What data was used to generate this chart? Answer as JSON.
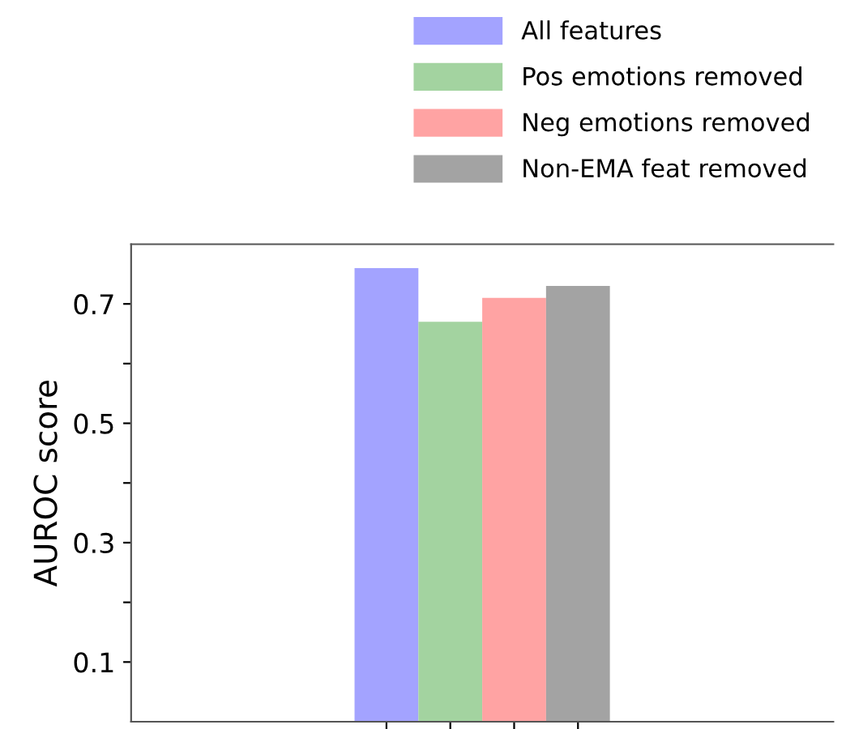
{
  "chart_data": {
    "type": "bar",
    "ylabel": "AUROC score",
    "categories": [
      null
    ],
    "series": [
      {
        "name": "All features",
        "color": "#a3a3ff",
        "values": [
          0.76
        ]
      },
      {
        "name": "Pos emotions removed",
        "color": "#a3d3a0",
        "values": [
          0.67
        ]
      },
      {
        "name": "Neg emotions removed",
        "color": "#ffa3a3",
        "values": [
          0.71
        ]
      },
      {
        "name": "Non-EMA feat removed",
        "color": "#a3a3a3",
        "values": [
          0.73
        ]
      }
    ],
    "ylim": [
      0,
      0.8
    ],
    "yticks": [
      0.1,
      {
        "value": 0.2,
        "label": null
      },
      0.3,
      {
        "value": 0.4,
        "label": null
      },
      0.5,
      {
        "value": 0.6,
        "label": null
      },
      0.7
    ],
    "tick_labels": "y",
    "grid": false,
    "legend": "top right"
  }
}
